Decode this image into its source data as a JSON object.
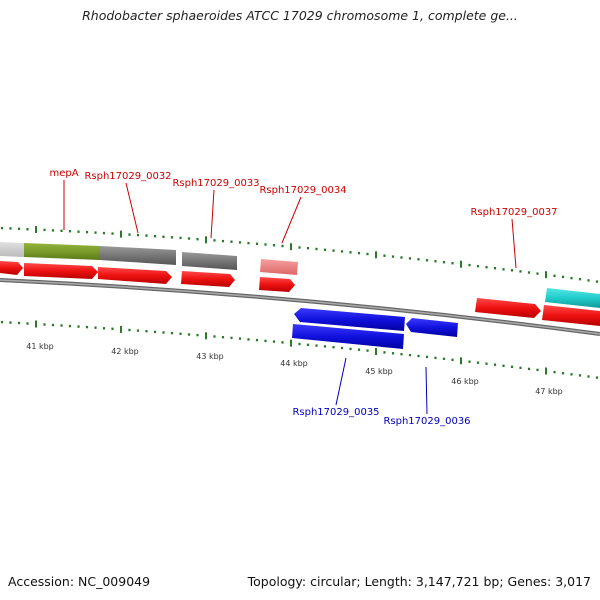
{
  "title": "Rhodobacter sphaeroides ATCC 17029 chromosome 1, complete ge...",
  "footer": {
    "accession": "Accession: NC_009049",
    "summary": "Topology: circular; Length: 3,147,721 bp; Genes: 3,017"
  },
  "gene_labels": [
    {
      "id": "mepA",
      "text": "mepA",
      "strand": "forward"
    },
    {
      "id": "0032",
      "text": "Rsph17029_0032",
      "strand": "forward"
    },
    {
      "id": "0033",
      "text": "Rsph17029_0033",
      "strand": "forward"
    },
    {
      "id": "0034",
      "text": "Rsph17029_0034",
      "strand": "forward"
    },
    {
      "id": "0037",
      "text": "Rsph17029_0037",
      "strand": "forward"
    },
    {
      "id": "0035",
      "text": "Rsph17029_0035",
      "strand": "reverse"
    },
    {
      "id": "0036",
      "text": "Rsph17029_0036",
      "strand": "reverse"
    }
  ],
  "kbp_labels": [
    "41 kbp",
    "42 kbp",
    "43 kbp",
    "44 kbp",
    "45 kbp",
    "46 kbp",
    "47 kbp"
  ],
  "colors": {
    "cds": "#ee1111",
    "cds_light": "#ee8888",
    "gene_gray": "#777777",
    "gene_green": "#7a9a2a",
    "gene_cyan": "#22cccc",
    "reverse_cds": "#1111dd",
    "tick": "#2a7a2a",
    "backbone": "#888888"
  }
}
